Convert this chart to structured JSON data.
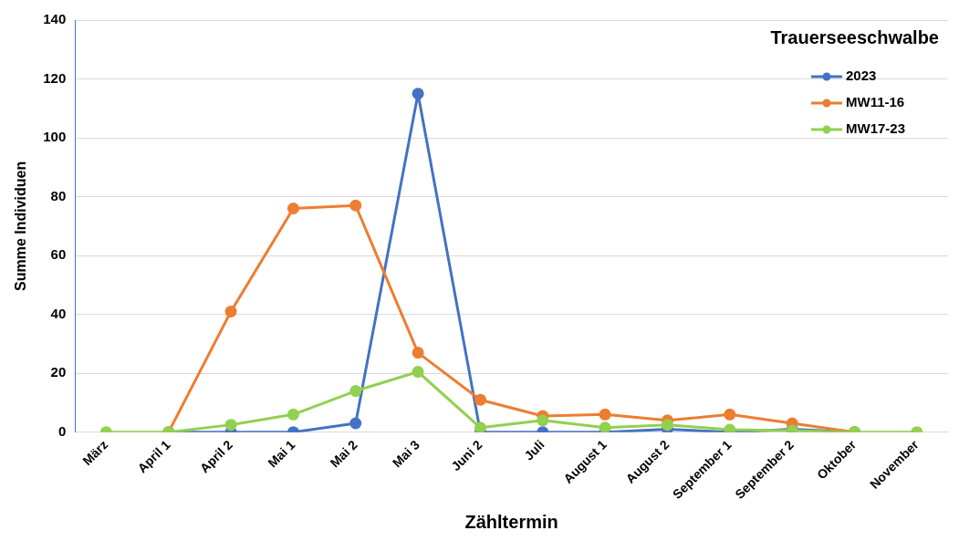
{
  "chart_data": {
    "type": "line",
    "title": "Trauerseeschwalbe",
    "xlabel": "Zähltermin",
    "ylabel": "Summe Individuen",
    "categories": [
      "März",
      "April 1",
      "April 2",
      "Mai 1",
      "Mai 2",
      "Mai 3",
      "Juni 2",
      "Juli",
      "August 1",
      "August 2",
      "September 1",
      "September 2",
      "Oktober",
      "November"
    ],
    "series": [
      {
        "name": "2023",
        "color": "#4472c4",
        "values": [
          null,
          0,
          0,
          0,
          3,
          115,
          0,
          0,
          0,
          1,
          0,
          1,
          0,
          null
        ]
      },
      {
        "name": "MW11-16",
        "color": "#ed7d31",
        "values": [
          null,
          0,
          41,
          76,
          77,
          27,
          11,
          5.5,
          6,
          4,
          6,
          3,
          0,
          null
        ]
      },
      {
        "name": "MW17-23",
        "color": "#92d050",
        "values": [
          0,
          0,
          2.5,
          6,
          14,
          20.5,
          1.5,
          4,
          1.5,
          2.5,
          0.8,
          0.5,
          0,
          0
        ]
      }
    ],
    "ylim": [
      0,
      140
    ],
    "yticks": [
      0,
      20,
      40,
      60,
      80,
      100,
      120,
      140
    ],
    "grid": "y",
    "legend": "top right",
    "marker": "circle",
    "line_style": "solid"
  }
}
